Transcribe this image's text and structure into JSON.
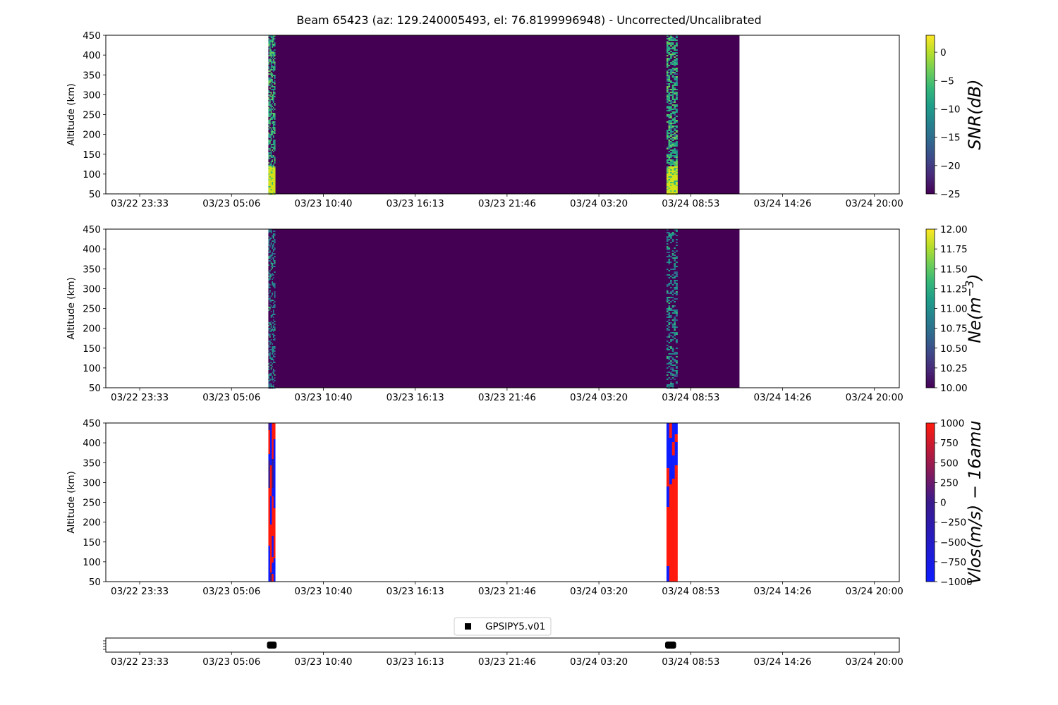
{
  "figure": {
    "title": "Beam 65423 (az: 129.240005493, el: 76.8199996948) - Uncorrected/Uncalibrated"
  },
  "x_ticks": [
    "03/22 23:33",
    "03/23 05:06",
    "03/23 10:40",
    "03/23 16:13",
    "03/23 21:46",
    "03/24 03:20",
    "03/24 08:53",
    "03/24 14:26",
    "03/24 20:00"
  ],
  "chart_data": [
    {
      "type": "heatmap",
      "ylabel": "Altitude (km)",
      "ylim": [
        50,
        450
      ],
      "yticks": [
        50,
        100,
        150,
        200,
        250,
        300,
        350,
        400,
        450
      ],
      "x_range": [
        "03/22 21:30",
        "03/24 21:30"
      ],
      "data_extent": [
        "03/23 07:20",
        "03/24 11:50"
      ],
      "background_value": -25,
      "active_bursts": [
        {
          "start": "03/23 07:20",
          "end": "03/23 07:45",
          "high_snr_below_km": 120
        },
        {
          "start": "03/24 07:25",
          "end": "03/24 08:05",
          "high_snr_below_km": 120
        }
      ],
      "colorbar": {
        "label": "SNR(dB)",
        "range": [
          -25,
          3
        ],
        "ticks": [
          "0",
          "−5",
          "−10",
          "−15",
          "−20",
          "−25"
        ],
        "colormap": "viridis"
      }
    },
    {
      "type": "heatmap",
      "ylabel": "Altitude (km)",
      "ylim": [
        50,
        450
      ],
      "yticks": [
        50,
        100,
        150,
        200,
        250,
        300,
        350,
        400,
        450
      ],
      "x_range": [
        "03/22 21:30",
        "03/24 21:30"
      ],
      "data_extent": [
        "03/23 07:20",
        "03/24 11:50"
      ],
      "background_value": 10.0,
      "active_bursts": [
        {
          "start": "03/23 07:20",
          "end": "03/23 07:45"
        },
        {
          "start": "03/24 07:25",
          "end": "03/24 08:05"
        }
      ],
      "colorbar": {
        "label_main": "Ne(m",
        "label_sup": "−3",
        "label_end": ")",
        "range": [
          10.0,
          12.0
        ],
        "ticks": [
          "12.00",
          "11.75",
          "11.50",
          "11.25",
          "11.00",
          "10.75",
          "10.50",
          "10.25",
          "10.00"
        ],
        "colormap": "viridis"
      }
    },
    {
      "type": "heatmap",
      "ylabel": "Altitude (km)",
      "ylim": [
        50,
        450
      ],
      "yticks": [
        50,
        100,
        150,
        200,
        250,
        300,
        350,
        400,
        450
      ],
      "x_range": [
        "03/22 21:30",
        "03/24 21:30"
      ],
      "active_bursts": [
        {
          "start": "03/23 07:20",
          "end": "03/23 07:45"
        },
        {
          "start": "03/24 07:25",
          "end": "03/24 08:05"
        }
      ],
      "colorbar": {
        "label": "Vlos(m/s) − 16amu",
        "range": [
          -1000,
          1000
        ],
        "ticks": [
          "1000",
          "750",
          "500",
          "250",
          "0",
          "−250",
          "−500",
          "−750",
          "−1000"
        ],
        "colormap": "bwr_saturated",
        "colors": [
          "#0d1dff",
          "#3a1a8c",
          "#ff1a0d"
        ]
      }
    },
    {
      "type": "scatter",
      "legend": "GPSIPY5.v01",
      "legend_position": "top-center",
      "x_range": [
        "03/22 21:30",
        "03/24 21:30"
      ],
      "segments": [
        {
          "start": "03/23 07:15",
          "end": "03/23 07:50"
        },
        {
          "start": "03/24 07:20",
          "end": "03/24 08:00"
        }
      ]
    }
  ]
}
